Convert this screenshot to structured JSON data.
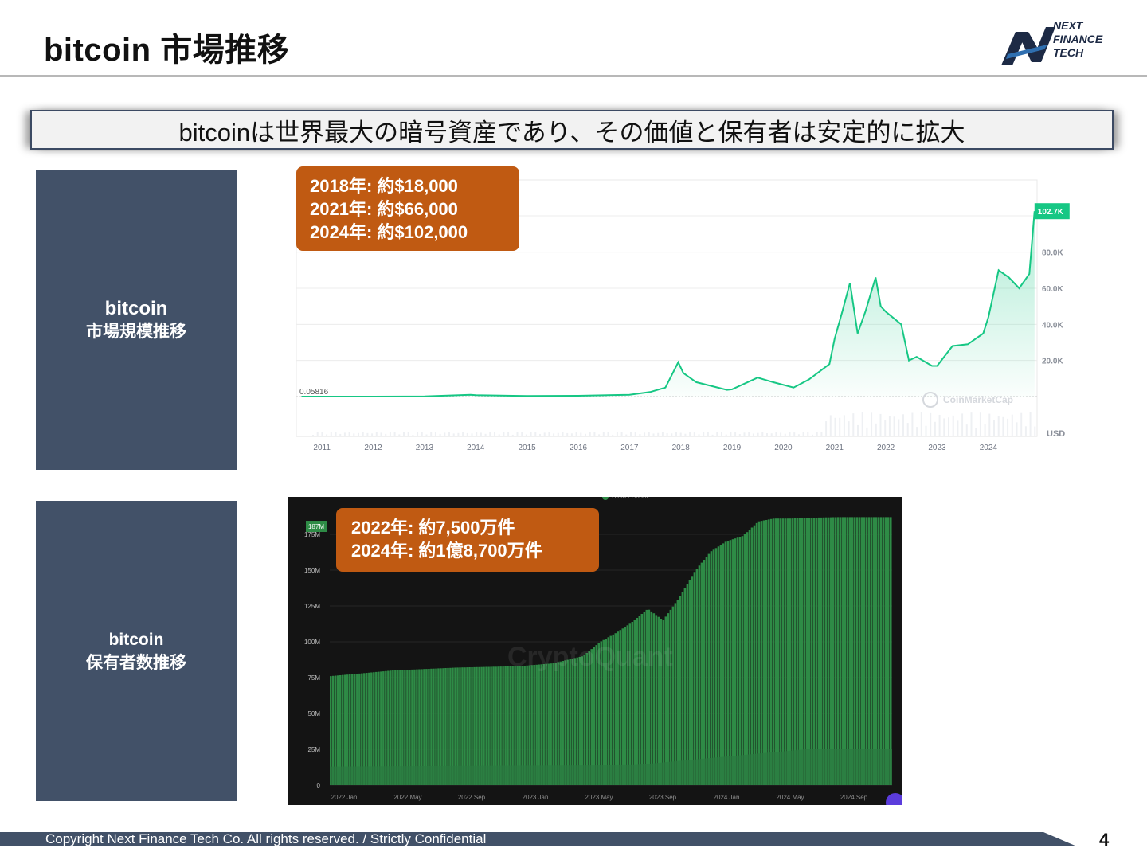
{
  "header": {
    "title": "bitcoin 市場推移"
  },
  "logo": {
    "line1": "NEXT",
    "line2": "FINANCE",
    "line3": "TECH"
  },
  "banner": {
    "text": "bitcoinは世界最大の暗号資産であり、その価値と保有者は安定的に拡大"
  },
  "panel1": {
    "label_line1": "bitcoin",
    "label_line2": "市場規模推移"
  },
  "panel2": {
    "label_line1": "bitcoin",
    "label_line2": "保有者数推移"
  },
  "callout1": {
    "lines": [
      "2018年: 約$18,000",
      "2021年: 約$66,000",
      "2024年: 約$102,000"
    ]
  },
  "callout2": {
    "lines": [
      "2022年: 約7,500万件",
      "2024年: 約1億8,700万件"
    ]
  },
  "chart_data": [
    {
      "type": "area",
      "watermark": "CoinMarketCap",
      "unit_label": "USD",
      "line_color": "#16c784",
      "first_value_label": "0.05816",
      "last_value_label": "102.7K",
      "y_ticks": [
        "20.0K",
        "40.0K",
        "60.0K",
        "80.0K"
      ],
      "ylim": [
        0,
        120000
      ],
      "x_ticks": [
        "2011",
        "2012",
        "2013",
        "2014",
        "2015",
        "2016",
        "2017",
        "2018",
        "2019",
        "2020",
        "2021",
        "2022",
        "2023",
        "2024"
      ],
      "series": [
        {
          "x": [
            2010.6,
            2011,
            2012,
            2013,
            2013.9,
            2014,
            2015,
            2016,
            2017,
            2017.4,
            2017.7,
            2017.95,
            2018.05,
            2018.3,
            2018.9,
            2019.0,
            2019.5,
            2019.8,
            2020.2,
            2020.5,
            2020.9,
            2021.0,
            2021.15,
            2021.3,
            2021.45,
            2021.6,
            2021.8,
            2021.9,
            2022.0,
            2022.3,
            2022.45,
            2022.6,
            2022.9,
            2023.0,
            2023.3,
            2023.6,
            2023.9,
            2024.0,
            2024.2,
            2024.4,
            2024.6,
            2024.8,
            2024.9
          ],
          "y": [
            0.05816,
            1,
            10,
            100,
            1000,
            800,
            300,
            450,
            1000,
            2500,
            5000,
            19000,
            13000,
            8000,
            3700,
            4000,
            10500,
            8000,
            5000,
            9500,
            18000,
            32000,
            47000,
            63000,
            35000,
            47000,
            66000,
            50000,
            47000,
            40000,
            20000,
            22000,
            17000,
            17000,
            28000,
            29000,
            35000,
            44000,
            70000,
            66000,
            60000,
            68000,
            102700
          ]
        }
      ]
    },
    {
      "type": "bar",
      "watermark": "CryptoQuant",
      "bar_color": "#2e8b46",
      "last_value_label": "187M",
      "y_ticks": [
        "0",
        "25M",
        "50M",
        "75M",
        "100M",
        "125M",
        "150M",
        "175M"
      ],
      "ylim": [
        0,
        190000000
      ],
      "x_ticks": [
        "2022 Jan",
        "2022 May",
        "2022 Sep",
        "2023 Jan",
        "2023 May",
        "2023 Sep",
        "2024 Jan",
        "2024 May",
        "2024 Sep"
      ],
      "series": [
        {
          "name": "UTXO Count",
          "x": [
            2022.0,
            2022.17,
            2022.33,
            2022.5,
            2022.67,
            2022.83,
            2023.0,
            2023.17,
            2023.33,
            2023.42,
            2023.5,
            2023.58,
            2023.67,
            2023.75,
            2023.83,
            2023.92,
            2024.0,
            2024.08,
            2024.17,
            2024.25,
            2024.33,
            2024.42,
            2024.5,
            2024.67,
            2024.83,
            2024.92
          ],
          "y": [
            76000000,
            78000000,
            80000000,
            81000000,
            82000000,
            82500000,
            83000000,
            85000000,
            90000000,
            100000000,
            106000000,
            113000000,
            123000000,
            115000000,
            130000000,
            150000000,
            163000000,
            170000000,
            174000000,
            184000000,
            186000000,
            186000000,
            186500000,
            187000000,
            187000000,
            187000000
          ]
        }
      ]
    }
  ],
  "footer": {
    "copyright": "Copyright Next Finance Tech Co. All rights reserved. / Strictly Confidential",
    "page": "4"
  }
}
